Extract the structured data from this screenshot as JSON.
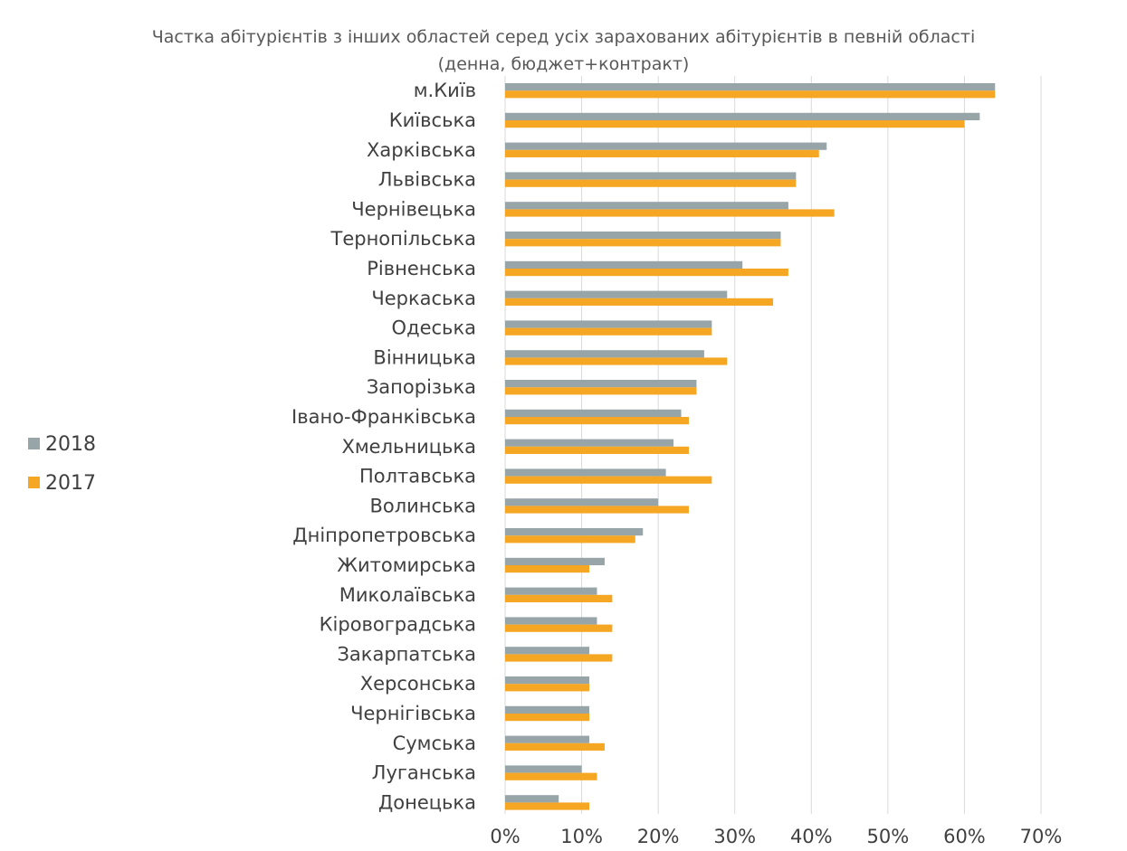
{
  "chart_data": {
    "type": "bar",
    "orientation": "horizontal",
    "title": "Частка абітурієнтів з інших областей серед усіх зарахованих абітурієнтів в певній області",
    "subtitle": "(денна, бюджет+контракт)",
    "categories": [
      "м.Київ",
      "Київська",
      "Харківська",
      "Львівська",
      "Чернівецька",
      "Тернопільська",
      "Рівненська",
      "Черкаська",
      "Одеська",
      "Вінницька",
      "Запорізька",
      "Івано-Франківська",
      "Хмельницька",
      "Полтавська",
      "Волинська",
      "Дніпропетровська",
      "Житомирська",
      "Миколаївська",
      "Кіровоградська",
      "Закарпатська",
      "Херсонська",
      "Чернігівська",
      "Сумська",
      "Луганська",
      "Донецька"
    ],
    "series": [
      {
        "name": "2018",
        "color": "#97a5a8",
        "values": [
          64,
          62,
          42,
          38,
          37,
          36,
          31,
          29,
          27,
          26,
          25,
          23,
          22,
          21,
          20,
          18,
          13,
          12,
          12,
          11,
          11,
          11,
          11,
          10,
          7
        ]
      },
      {
        "name": "2017",
        "color": "#f5a623",
        "values": [
          64,
          60,
          41,
          38,
          43,
          36,
          37,
          35,
          27,
          29,
          25,
          24,
          24,
          27,
          24,
          17,
          11,
          14,
          14,
          14,
          11,
          11,
          13,
          12,
          11
        ]
      }
    ],
    "xlim": [
      0,
      70
    ],
    "ticks": [
      "0%",
      "10%",
      "20%",
      "30%",
      "40%",
      "50%",
      "60%",
      "70%"
    ],
    "tick_values": [
      0,
      10,
      20,
      30,
      40,
      50,
      60,
      70
    ],
    "grid": true,
    "legend_position": "left"
  }
}
